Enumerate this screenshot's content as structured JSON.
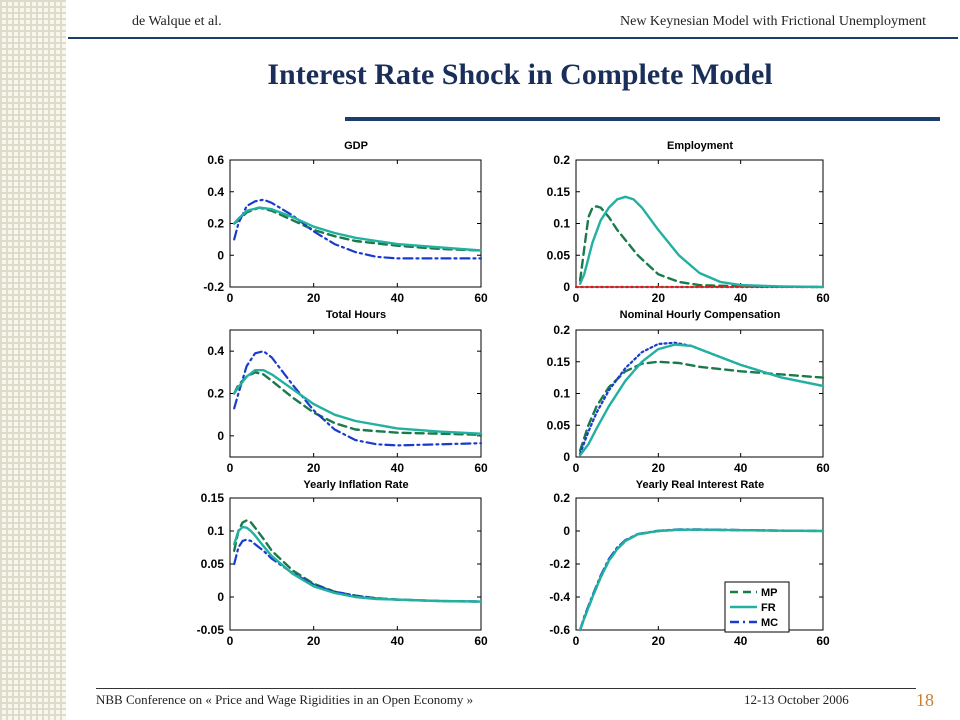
{
  "header": {
    "left": "de Walque et al.",
    "right": "New Keynesian Model  with Frictional Unemployment"
  },
  "title": "Interest Rate Shock in Complete Model",
  "footer": {
    "left": "NBB Conference on « Price and Wage Rigidities in an Open Economy »",
    "date": "12-13 October 2006",
    "page": "18"
  },
  "colors": {
    "MP": "#1a7a4a",
    "FR": "#22b0a0",
    "MC": "#1a3ccc",
    "zero": "#d62020"
  },
  "chart_data": [
    {
      "type": "line",
      "title": "GDP",
      "xlim": [
        0,
        60
      ],
      "ylim": [
        -0.2,
        0.6
      ],
      "xticks": [
        "0",
        "20",
        "40",
        "60"
      ],
      "yticks": [
        "-0.2",
        "0",
        "0.2",
        "0.4",
        "0.6"
      ],
      "series": [
        {
          "name": "MP",
          "style": "dashed",
          "x": [
            1,
            2,
            4,
            7,
            10,
            15,
            20,
            25,
            30,
            40,
            50,
            60
          ],
          "y": [
            0.2,
            0.22,
            0.27,
            0.3,
            0.28,
            0.22,
            0.16,
            0.12,
            0.09,
            0.06,
            0.04,
            0.03
          ]
        },
        {
          "name": "FR",
          "style": "solid",
          "x": [
            1,
            2,
            4,
            7,
            10,
            15,
            20,
            25,
            30,
            40,
            50,
            60
          ],
          "y": [
            0.2,
            0.23,
            0.28,
            0.3,
            0.29,
            0.24,
            0.18,
            0.14,
            0.11,
            0.07,
            0.05,
            0.03
          ]
        },
        {
          "name": "MC",
          "style": "dashdot",
          "x": [
            1,
            2,
            4,
            6,
            8,
            10,
            15,
            20,
            25,
            30,
            35,
            40,
            50,
            60
          ],
          "y": [
            0.1,
            0.2,
            0.31,
            0.34,
            0.35,
            0.33,
            0.25,
            0.15,
            0.07,
            0.02,
            -0.01,
            -0.02,
            -0.02,
            -0.02
          ]
        }
      ]
    },
    {
      "type": "line",
      "title": "Employment",
      "xlim": [
        0,
        60
      ],
      "ylim": [
        0,
        0.2
      ],
      "xticks": [
        "0",
        "20",
        "40",
        "60"
      ],
      "yticks": [
        "0",
        "0.05",
        "0.1",
        "0.15",
        "0.2"
      ],
      "series": [
        {
          "name": "MP",
          "style": "dashed",
          "x": [
            1,
            2,
            3,
            4,
            5,
            6,
            8,
            10,
            15,
            20,
            25,
            30,
            40,
            60
          ],
          "y": [
            0.01,
            0.06,
            0.11,
            0.125,
            0.127,
            0.125,
            0.11,
            0.09,
            0.05,
            0.02,
            0.008,
            0.003,
            0.001,
            0
          ]
        },
        {
          "name": "FR",
          "style": "solid",
          "x": [
            1,
            2,
            4,
            6,
            8,
            10,
            12,
            14,
            16,
            20,
            25,
            30,
            35,
            40,
            50,
            60
          ],
          "y": [
            0.005,
            0.02,
            0.07,
            0.105,
            0.125,
            0.138,
            0.142,
            0.138,
            0.125,
            0.09,
            0.05,
            0.022,
            0.008,
            0.003,
            0.001,
            0
          ]
        },
        {
          "name": "MC",
          "style": "dotted",
          "x": [
            0,
            60
          ],
          "y": [
            0,
            0
          ]
        }
      ]
    },
    {
      "type": "line",
      "title": "Total Hours",
      "xlim": [
        0,
        60
      ],
      "ylim": [
        -0.1,
        0.5
      ],
      "xticks": [
        "0",
        "20",
        "40",
        "60"
      ],
      "yticks": [
        "0",
        "0.2",
        "0.4"
      ],
      "series": [
        {
          "name": "MP",
          "style": "dashed",
          "x": [
            1,
            2,
            4,
            6,
            8,
            10,
            15,
            20,
            25,
            30,
            40,
            50,
            60
          ],
          "y": [
            0.2,
            0.24,
            0.28,
            0.3,
            0.29,
            0.26,
            0.18,
            0.11,
            0.06,
            0.03,
            0.015,
            0.01,
            0.005
          ]
        },
        {
          "name": "FR",
          "style": "solid",
          "x": [
            1,
            2,
            4,
            6,
            8,
            10,
            15,
            20,
            25,
            30,
            40,
            50,
            60
          ],
          "y": [
            0.2,
            0.23,
            0.28,
            0.31,
            0.31,
            0.29,
            0.22,
            0.15,
            0.1,
            0.07,
            0.035,
            0.02,
            0.01
          ]
        },
        {
          "name": "MC",
          "style": "dashdot",
          "x": [
            1,
            2,
            4,
            6,
            8,
            10,
            15,
            20,
            25,
            30,
            35,
            40,
            50,
            60
          ],
          "y": [
            0.13,
            0.2,
            0.33,
            0.39,
            0.4,
            0.37,
            0.24,
            0.12,
            0.03,
            -0.02,
            -0.04,
            -0.045,
            -0.04,
            -0.035
          ]
        }
      ]
    },
    {
      "type": "line",
      "title": "Nominal Hourly Compensation",
      "xlim": [
        0,
        60
      ],
      "ylim": [
        0,
        0.2
      ],
      "xticks": [
        "0",
        "20",
        "40",
        "60"
      ],
      "yticks": [
        "0",
        "0.05",
        "0.1",
        "0.15",
        "0.2"
      ],
      "series": [
        {
          "name": "MP",
          "style": "dashed",
          "x": [
            1,
            3,
            5,
            8,
            12,
            16,
            20,
            25,
            30,
            40,
            50,
            60
          ],
          "y": [
            0.01,
            0.05,
            0.08,
            0.11,
            0.135,
            0.147,
            0.15,
            0.148,
            0.142,
            0.135,
            0.13,
            0.125
          ]
        },
        {
          "name": "FR",
          "style": "solid",
          "x": [
            1,
            3,
            5,
            8,
            12,
            16,
            20,
            24,
            28,
            32,
            40,
            50,
            60
          ],
          "y": [
            0.003,
            0.02,
            0.045,
            0.08,
            0.12,
            0.15,
            0.17,
            0.177,
            0.175,
            0.165,
            0.145,
            0.125,
            0.112
          ]
        },
        {
          "name": "MC",
          "style": "dotted",
          "x": [
            1,
            3,
            5,
            8,
            12,
            16,
            20,
            24,
            28,
            32,
            40,
            50,
            60
          ],
          "y": [
            0.005,
            0.04,
            0.07,
            0.105,
            0.14,
            0.165,
            0.178,
            0.18,
            0.175,
            0.165,
            0.145,
            0.125,
            0.112
          ]
        }
      ]
    },
    {
      "type": "line",
      "title": "Yearly Inflation Rate",
      "xlim": [
        0,
        60
      ],
      "ylim": [
        -0.05,
        0.15
      ],
      "xticks": [
        "0",
        "20",
        "40",
        "60"
      ],
      "yticks": [
        "-0.05",
        "0",
        "0.05",
        "0.1",
        "0.15"
      ],
      "series": [
        {
          "name": "MP",
          "style": "dashed",
          "x": [
            1,
            2,
            3,
            4,
            5,
            6,
            8,
            10,
            15,
            20,
            25,
            30,
            35,
            40,
            50,
            60
          ],
          "y": [
            0.07,
            0.1,
            0.113,
            0.116,
            0.113,
            0.105,
            0.088,
            0.07,
            0.04,
            0.02,
            0.008,
            0.002,
            -0.002,
            -0.004,
            -0.006,
            -0.007
          ]
        },
        {
          "name": "FR",
          "style": "solid",
          "x": [
            1,
            2,
            3,
            4,
            5,
            6,
            8,
            10,
            15,
            20,
            25,
            30,
            35,
            40,
            50,
            60
          ],
          "y": [
            0.08,
            0.1,
            0.106,
            0.105,
            0.1,
            0.093,
            0.077,
            0.062,
            0.035,
            0.016,
            0.006,
            0.0,
            -0.003,
            -0.004,
            -0.006,
            -0.007
          ]
        },
        {
          "name": "MC",
          "style": "dashdot",
          "x": [
            1,
            2,
            3,
            4,
            5,
            6,
            8,
            10,
            15,
            20,
            25,
            30,
            35,
            40,
            50,
            60
          ],
          "y": [
            0.05,
            0.075,
            0.085,
            0.087,
            0.085,
            0.08,
            0.07,
            0.058,
            0.036,
            0.019,
            0.008,
            0.002,
            -0.002,
            -0.004,
            -0.006,
            -0.007
          ]
        }
      ]
    },
    {
      "type": "line",
      "title": "Yearly Real Interest Rate",
      "xlim": [
        0,
        60
      ],
      "ylim": [
        -0.6,
        0.2
      ],
      "xticks": [
        "0",
        "20",
        "40",
        "60"
      ],
      "yticks": [
        "-0.6",
        "-0.4",
        "-0.2",
        "0",
        "0.2"
      ],
      "legend": {
        "position": "lower-right",
        "entries": [
          "MP",
          "FR",
          "MC"
        ]
      },
      "series": [
        {
          "name": "MP",
          "style": "dashed",
          "x": [
            1,
            2,
            4,
            6,
            8,
            10,
            12,
            15,
            20,
            25,
            30,
            40,
            50,
            60
          ],
          "y": [
            -0.6,
            -0.53,
            -0.4,
            -0.28,
            -0.18,
            -0.11,
            -0.06,
            -0.02,
            0.0,
            0.008,
            0.008,
            0.005,
            0.002,
            0.0
          ]
        },
        {
          "name": "FR",
          "style": "solid",
          "x": [
            1,
            2,
            4,
            6,
            8,
            10,
            12,
            15,
            20,
            25,
            30,
            40,
            50,
            60
          ],
          "y": [
            -0.6,
            -0.53,
            -0.4,
            -0.28,
            -0.18,
            -0.11,
            -0.06,
            -0.02,
            0.0,
            0.008,
            0.008,
            0.005,
            0.002,
            0.0
          ]
        },
        {
          "name": "MC",
          "style": "dashdot",
          "x": [
            1,
            2,
            4,
            6,
            8,
            10,
            12,
            15,
            20,
            25,
            30,
            40,
            50,
            60
          ],
          "y": [
            -0.6,
            -0.52,
            -0.39,
            -0.27,
            -0.17,
            -0.1,
            -0.055,
            -0.018,
            0.002,
            0.01,
            0.01,
            0.006,
            0.003,
            0.0
          ]
        }
      ]
    }
  ]
}
